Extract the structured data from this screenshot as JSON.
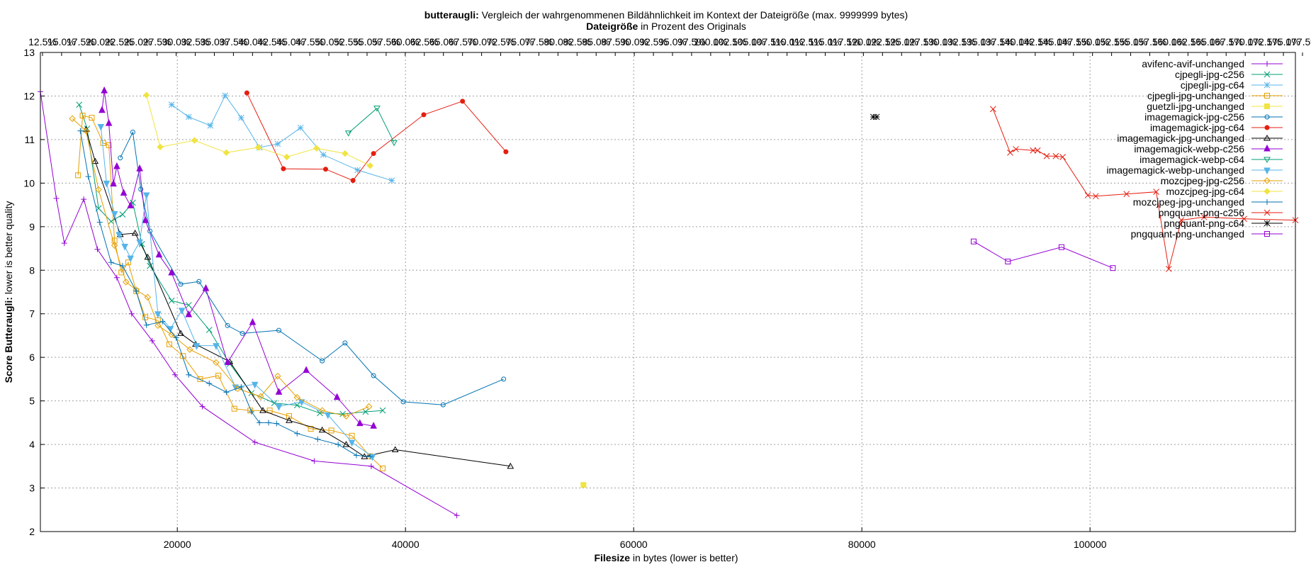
{
  "chart_data": {
    "type": "line",
    "title_bold": "butteraugli:",
    "title_rest": " Vergleich der wahrgenommenen Bildähnlichkeit im Kontext der Dateigröße (max. 9999999 bytes)",
    "x2label_bold": "Dateigröße",
    "x2label_rest": " in Prozent des Originals",
    "xlabel_bold": "Filesize",
    "xlabel_rest": " in bytes (lower is better)",
    "ylabel_bold": "Score Butteraugli:",
    "ylabel_rest": " lower is better quality",
    "xlim": [
      8000,
      118000
    ],
    "ylim": [
      2,
      13
    ],
    "x_ticks": [
      20000,
      40000,
      60000,
      80000,
      100000
    ],
    "x_tick_labels": [
      "20000",
      "40000",
      "60000",
      "80000",
      "100000"
    ],
    "y_ticks": [
      2,
      3,
      4,
      5,
      6,
      7,
      8,
      9,
      10,
      11,
      12,
      13
    ],
    "y_tick_labels": [
      "2",
      "3",
      "4",
      "5",
      "6",
      "7",
      "8",
      "9",
      "10",
      "11",
      "12",
      "13"
    ],
    "x2_tick_labels": [
      "12.5%",
      "15.0%",
      "17.5%",
      "20.0%",
      "22.5%",
      "25.0%",
      "27.5%",
      "30.0%",
      "32.5%",
      "35.0%",
      "37.5%",
      "40.0%",
      "42.5%",
      "45.0%",
      "47.5%",
      "50.0%",
      "52.5%",
      "55.0%",
      "57.5%",
      "60.0%",
      "62.5%",
      "65.0%",
      "67.5%",
      "70.0%",
      "72.5%",
      "75.0%",
      "77.5%",
      "80.0%",
      "82.5%",
      "85.0%",
      "87.5%",
      "90.0%",
      "92.5%",
      "95.0%",
      "97.5%",
      "100.0%",
      "102.5%",
      "105.0%",
      "107.5%",
      "110.0%",
      "112.5%",
      "115.0%",
      "117.5%",
      "120.0%",
      "122.5%",
      "125.0%",
      "127.5%",
      "130.0%",
      "132.5%",
      "135.0%",
      "137.5%",
      "140.0%",
      "142.5%",
      "145.0%",
      "147.5%",
      "150.0%",
      "152.5%",
      "155.0%",
      "157.5%",
      "160.0%",
      "162.5%",
      "165.0%",
      "167.5%",
      "170.0%",
      "172.5%",
      "175.0%",
      "177.5%"
    ],
    "grid": true,
    "legend_position": "top-right",
    "series": [
      {
        "name": "avifenc-avif-unchanged",
        "color": "#9400d3",
        "marker": "plus",
        "x": [
          8000,
          9400,
          10100,
          11800,
          13000,
          14700,
          16000,
          17800,
          19800,
          22200,
          26800,
          32000,
          37000,
          44500
        ],
        "y": [
          12.1,
          9.65,
          8.62,
          9.63,
          8.48,
          7.83,
          7.0,
          6.38,
          5.6,
          4.87,
          4.05,
          3.62,
          3.5,
          2.37
        ]
      },
      {
        "name": "cjpegli-jpg-c256",
        "color": "#009e73",
        "marker": "x",
        "x": [
          11400,
          12100,
          13100,
          14200,
          15200,
          16100,
          16900,
          17600,
          19500,
          21000,
          22800,
          24600,
          26500,
          28500,
          30500,
          32500,
          34500,
          36500,
          38000
        ],
        "y": [
          11.8,
          11.25,
          9.42,
          9.12,
          9.28,
          9.55,
          8.6,
          8.1,
          7.3,
          7.2,
          6.63,
          5.85,
          5.18,
          4.95,
          4.9,
          4.72,
          4.7,
          4.75,
          4.78
        ]
      },
      {
        "name": "cjpegli-jpg-c64",
        "color": "#56b4e9",
        "marker": "star",
        "x": [
          19500,
          21000,
          22900,
          24200,
          25600,
          27200,
          28800,
          30800,
          32800,
          35800,
          38800
        ],
        "y": [
          11.8,
          11.52,
          11.32,
          12.01,
          11.5,
          10.82,
          10.9,
          11.27,
          10.65,
          10.3,
          10.06
        ]
      },
      {
        "name": "cjpegli-jpg-unchanged",
        "color": "#e69f00",
        "marker": "box",
        "x": [
          11300,
          11700,
          12500,
          13500,
          14000,
          14500,
          15100,
          15700,
          16400,
          17200,
          18300,
          19300,
          20500,
          22000,
          23600,
          25000,
          26400,
          28100,
          29800,
          31700,
          33500,
          35300,
          36900,
          38000
        ],
        "y": [
          10.18,
          11.55,
          11.5,
          10.92,
          10.87,
          8.68,
          7.95,
          8.18,
          7.52,
          6.92,
          6.85,
          6.3,
          6.03,
          5.5,
          5.58,
          4.82,
          4.78,
          4.78,
          4.65,
          4.36,
          4.32,
          4.2,
          3.73,
          3.45
        ]
      },
      {
        "name": "guetzli-jpg-unchanged",
        "color": "#f0e442",
        "marker": "filled-box",
        "x": [
          55600
        ],
        "y": [
          3.07
        ]
      },
      {
        "name": "imagemagick-jpg-c256",
        "color": "#0072b2",
        "marker": "circle",
        "x": [
          15000,
          16100,
          16800,
          17600,
          20300,
          21900,
          24400,
          25700,
          28900,
          32700,
          34700,
          37200,
          39800,
          43300,
          48600
        ],
        "y": [
          10.58,
          11.17,
          9.86,
          8.9,
          7.68,
          7.74,
          6.73,
          6.55,
          6.62,
          5.92,
          6.33,
          5.58,
          4.98,
          4.91,
          5.5
        ]
      },
      {
        "name": "imagemagick-jpg-c64",
        "color": "#e51e10",
        "marker": "filled-circle",
        "x": [
          26100,
          29300,
          33000,
          35400,
          37200,
          41600,
          45000,
          48800
        ],
        "y": [
          12.07,
          10.33,
          10.32,
          10.06,
          10.68,
          11.57,
          11.88,
          10.72
        ]
      },
      {
        "name": "imagemagick-jpg-unchanged",
        "color": "#000000",
        "marker": "triangle",
        "x": [
          12000,
          12800,
          15000,
          16300,
          17400,
          20300,
          21600,
          24600,
          27500,
          29800,
          32700,
          34800,
          36400,
          39100,
          49200
        ],
        "y": [
          11.23,
          10.5,
          8.82,
          8.85,
          8.3,
          6.55,
          6.3,
          5.9,
          4.78,
          4.55,
          4.33,
          4.0,
          3.72,
          3.88,
          3.5
        ]
      },
      {
        "name": "imagemagick-webp-c256",
        "color": "#9400d3",
        "marker": "filled-triangle",
        "x": [
          13400,
          13600,
          14000,
          14400,
          14700,
          15300,
          15900,
          16700,
          17200,
          18400,
          19500,
          21000,
          22500,
          24400,
          26600,
          28900,
          31300,
          34000,
          36000,
          37200
        ],
        "y": [
          11.67,
          12.12,
          11.37,
          9.98,
          10.38,
          9.77,
          9.48,
          10.33,
          9.14,
          8.35,
          7.94,
          6.98,
          7.58,
          5.88,
          6.8,
          5.2,
          5.7,
          5.08,
          4.48,
          4.42
        ]
      },
      {
        "name": "imagemagick-webp-c64",
        "color": "#009e73",
        "marker": "triangle-down",
        "x": [
          35000,
          37500,
          39000
        ],
        "y": [
          11.15,
          11.72,
          10.93
        ]
      },
      {
        "name": "imagemagick-webp-unchanged",
        "color": "#56b4e9",
        "marker": "filled-triangle-down",
        "x": [
          13300,
          13800,
          14500,
          14900,
          15400,
          15900,
          16700,
          17300,
          18300,
          19400,
          20400,
          21700,
          23400,
          25100,
          26800,
          28900,
          30900,
          33200,
          35300,
          37100
        ],
        "y": [
          11.3,
          10.0,
          9.3,
          8.82,
          8.55,
          8.28,
          8.65,
          9.73,
          7.0,
          6.66,
          7.08,
          6.27,
          6.27,
          5.32,
          5.38,
          4.87,
          4.98,
          4.68,
          4.05,
          3.72
        ]
      },
      {
        "name": "mozcjpeg-jpg-c256",
        "color": "#e69f00",
        "marker": "diamond",
        "x": [
          10800,
          12000,
          13100,
          14500,
          15500,
          16400,
          17400,
          18300,
          19500,
          21100,
          23400,
          25300,
          27300,
          28800,
          30500,
          32700,
          34800,
          36800
        ],
        "y": [
          11.48,
          11.2,
          9.85,
          8.57,
          7.73,
          7.55,
          7.38,
          6.73,
          6.52,
          6.18,
          5.88,
          5.28,
          5.1,
          5.57,
          5.08,
          4.78,
          4.65,
          4.87
        ]
      },
      {
        "name": "mozcjpeg-jpg-c64",
        "color": "#f0e442",
        "marker": "filled-diamond",
        "x": [
          17300,
          18500,
          21500,
          24300,
          27100,
          29600,
          32200,
          34700,
          36900
        ],
        "y": [
          12.02,
          10.83,
          10.98,
          10.7,
          10.82,
          10.6,
          10.8,
          10.68,
          10.4
        ]
      },
      {
        "name": "mozcjpeg-jpg-unchanged",
        "color": "#0072b2",
        "marker": "plus",
        "x": [
          11500,
          12200,
          13200,
          14200,
          15200,
          16400,
          17300,
          18700,
          19900,
          21000,
          22800,
          24300,
          25600,
          26500,
          27200,
          28000,
          28700,
          30500,
          32300,
          34100,
          35700,
          36900
        ],
        "y": [
          11.2,
          10.15,
          9.1,
          8.18,
          8.1,
          7.52,
          6.74,
          6.82,
          6.45,
          5.6,
          5.4,
          5.2,
          5.32,
          4.75,
          4.5,
          4.5,
          4.48,
          4.25,
          4.12,
          4.0,
          3.75,
          3.72
        ]
      },
      {
        "name": "pngquant-png-c256",
        "color": "#e51e10",
        "marker": "x",
        "x": [
          91500,
          93000,
          93500,
          95000,
          95400,
          96200,
          97000,
          97600,
          99800,
          100500,
          103200,
          105800,
          106900,
          108000,
          110000,
          113500,
          118000
        ],
        "y": [
          11.7,
          10.7,
          10.78,
          10.75,
          10.75,
          10.62,
          10.62,
          10.6,
          9.72,
          9.7,
          9.75,
          9.8,
          8.03,
          9.15,
          9.22,
          9.18,
          9.15
        ]
      },
      {
        "name": "pngquant-png-c64",
        "color": "#000000",
        "marker": "star",
        "x": [
          81000,
          81300
        ],
        "y": [
          11.52,
          11.52
        ]
      },
      {
        "name": "pngquant-png-unchanged",
        "color": "#9400d3",
        "marker": "box",
        "x": [
          89800,
          92800,
          97500,
          102000
        ],
        "y": [
          8.66,
          8.2,
          8.53,
          8.05
        ]
      }
    ]
  }
}
